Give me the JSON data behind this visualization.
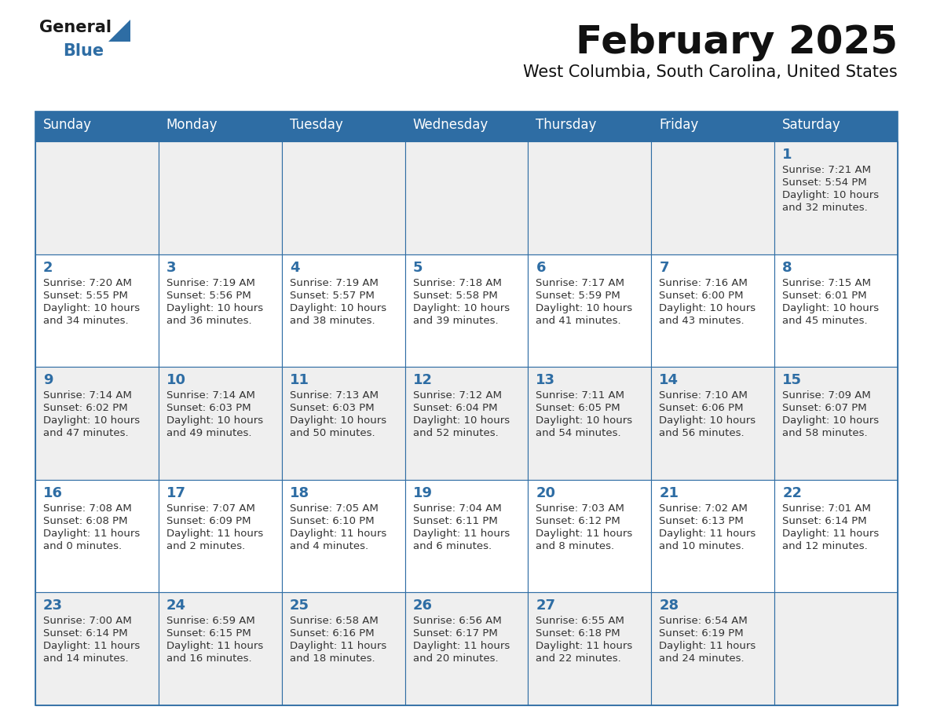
{
  "title": "February 2025",
  "subtitle": "West Columbia, South Carolina, United States",
  "header_bg": "#2E6DA4",
  "header_text_color": "#FFFFFF",
  "cell_bg_odd": "#EFEFEF",
  "cell_bg_even": "#FFFFFF",
  "day_headers": [
    "Sunday",
    "Monday",
    "Tuesday",
    "Wednesday",
    "Thursday",
    "Friday",
    "Saturday"
  ],
  "calendar_data": [
    [
      null,
      null,
      null,
      null,
      null,
      null,
      {
        "day": "1",
        "sunrise": "7:21 AM",
        "sunset": "5:54 PM",
        "daylight": "10 hours",
        "daylight2": "and 32 minutes."
      }
    ],
    [
      {
        "day": "2",
        "sunrise": "7:20 AM",
        "sunset": "5:55 PM",
        "daylight": "10 hours",
        "daylight2": "and 34 minutes."
      },
      {
        "day": "3",
        "sunrise": "7:19 AM",
        "sunset": "5:56 PM",
        "daylight": "10 hours",
        "daylight2": "and 36 minutes."
      },
      {
        "day": "4",
        "sunrise": "7:19 AM",
        "sunset": "5:57 PM",
        "daylight": "10 hours",
        "daylight2": "and 38 minutes."
      },
      {
        "day": "5",
        "sunrise": "7:18 AM",
        "sunset": "5:58 PM",
        "daylight": "10 hours",
        "daylight2": "and 39 minutes."
      },
      {
        "day": "6",
        "sunrise": "7:17 AM",
        "sunset": "5:59 PM",
        "daylight": "10 hours",
        "daylight2": "and 41 minutes."
      },
      {
        "day": "7",
        "sunrise": "7:16 AM",
        "sunset": "6:00 PM",
        "daylight": "10 hours",
        "daylight2": "and 43 minutes."
      },
      {
        "day": "8",
        "sunrise": "7:15 AM",
        "sunset": "6:01 PM",
        "daylight": "10 hours",
        "daylight2": "and 45 minutes."
      }
    ],
    [
      {
        "day": "9",
        "sunrise": "7:14 AM",
        "sunset": "6:02 PM",
        "daylight": "10 hours",
        "daylight2": "and 47 minutes."
      },
      {
        "day": "10",
        "sunrise": "7:14 AM",
        "sunset": "6:03 PM",
        "daylight": "10 hours",
        "daylight2": "and 49 minutes."
      },
      {
        "day": "11",
        "sunrise": "7:13 AM",
        "sunset": "6:03 PM",
        "daylight": "10 hours",
        "daylight2": "and 50 minutes."
      },
      {
        "day": "12",
        "sunrise": "7:12 AM",
        "sunset": "6:04 PM",
        "daylight": "10 hours",
        "daylight2": "and 52 minutes."
      },
      {
        "day": "13",
        "sunrise": "7:11 AM",
        "sunset": "6:05 PM",
        "daylight": "10 hours",
        "daylight2": "and 54 minutes."
      },
      {
        "day": "14",
        "sunrise": "7:10 AM",
        "sunset": "6:06 PM",
        "daylight": "10 hours",
        "daylight2": "and 56 minutes."
      },
      {
        "day": "15",
        "sunrise": "7:09 AM",
        "sunset": "6:07 PM",
        "daylight": "10 hours",
        "daylight2": "and 58 minutes."
      }
    ],
    [
      {
        "day": "16",
        "sunrise": "7:08 AM",
        "sunset": "6:08 PM",
        "daylight": "11 hours",
        "daylight2": "and 0 minutes."
      },
      {
        "day": "17",
        "sunrise": "7:07 AM",
        "sunset": "6:09 PM",
        "daylight": "11 hours",
        "daylight2": "and 2 minutes."
      },
      {
        "day": "18",
        "sunrise": "7:05 AM",
        "sunset": "6:10 PM",
        "daylight": "11 hours",
        "daylight2": "and 4 minutes."
      },
      {
        "day": "19",
        "sunrise": "7:04 AM",
        "sunset": "6:11 PM",
        "daylight": "11 hours",
        "daylight2": "and 6 minutes."
      },
      {
        "day": "20",
        "sunrise": "7:03 AM",
        "sunset": "6:12 PM",
        "daylight": "11 hours",
        "daylight2": "and 8 minutes."
      },
      {
        "day": "21",
        "sunrise": "7:02 AM",
        "sunset": "6:13 PM",
        "daylight": "11 hours",
        "daylight2": "and 10 minutes."
      },
      {
        "day": "22",
        "sunrise": "7:01 AM",
        "sunset": "6:14 PM",
        "daylight": "11 hours",
        "daylight2": "and 12 minutes."
      }
    ],
    [
      {
        "day": "23",
        "sunrise": "7:00 AM",
        "sunset": "6:14 PM",
        "daylight": "11 hours",
        "daylight2": "and 14 minutes."
      },
      {
        "day": "24",
        "sunrise": "6:59 AM",
        "sunset": "6:15 PM",
        "daylight": "11 hours",
        "daylight2": "and 16 minutes."
      },
      {
        "day": "25",
        "sunrise": "6:58 AM",
        "sunset": "6:16 PM",
        "daylight": "11 hours",
        "daylight2": "and 18 minutes."
      },
      {
        "day": "26",
        "sunrise": "6:56 AM",
        "sunset": "6:17 PM",
        "daylight": "11 hours",
        "daylight2": "and 20 minutes."
      },
      {
        "day": "27",
        "sunrise": "6:55 AM",
        "sunset": "6:18 PM",
        "daylight": "11 hours",
        "daylight2": "and 22 minutes."
      },
      {
        "day": "28",
        "sunrise": "6:54 AM",
        "sunset": "6:19 PM",
        "daylight": "11 hours",
        "daylight2": "and 24 minutes."
      },
      null
    ]
  ],
  "logo_general_color": "#1a1a1a",
  "logo_blue_color": "#2E6DA4",
  "title_color": "#111111",
  "subtitle_color": "#111111",
  "grid_color": "#2E6DA4",
  "day_number_color": "#2E6DA4",
  "cell_text_color": "#333333"
}
